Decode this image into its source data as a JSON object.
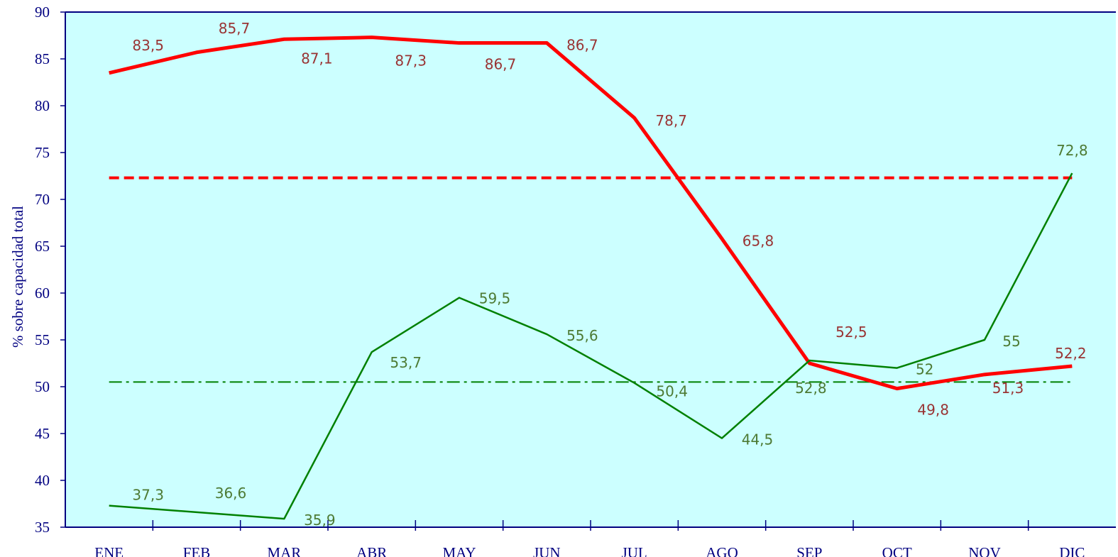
{
  "chart_data": {
    "type": "line",
    "y_axis_label": "% sobre capacidad total",
    "categories": [
      "ENE",
      "FEB",
      "MAR",
      "ABR",
      "MAY",
      "JUN",
      "JUL",
      "AGO",
      "SEP",
      "OCT",
      "NOV",
      "DIC"
    ],
    "series": [
      {
        "color": "#ff0000",
        "width": 5,
        "values": [
          83.5,
          85.7,
          87.1,
          87.3,
          86.7,
          86.7,
          78.7,
          65.8,
          52.5,
          49.8,
          51.3,
          52.2
        ],
        "value_labels": [
          "83,5",
          "85,7",
          "87,1",
          "87,3",
          "86,7",
          "86,7",
          "78,7",
          "65,8",
          "52,5",
          "49,8",
          "51,3",
          "52,2"
        ],
        "label_color": "#993333"
      },
      {
        "color": "#008000",
        "width": 2.5,
        "values": [
          37.3,
          36.6,
          35.9,
          53.7,
          59.5,
          55.6,
          50.4,
          44.5,
          52.8,
          52,
          55,
          72.8
        ],
        "value_labels": [
          "37,3",
          "36,6",
          "35,9",
          "53,7",
          "59,5",
          "55,6",
          "50,4",
          "44,5",
          "52,8",
          "52",
          "55",
          "72,8"
        ],
        "label_color": "#4d7a33"
      }
    ],
    "reference_lines": [
      {
        "value": 72.3,
        "color": "#ff0000",
        "style": "dashed"
      },
      {
        "value": 50.5,
        "color": "#008000",
        "style": "dashdot"
      }
    ],
    "ylim": [
      35,
      90
    ],
    "yticks": [
      35,
      40,
      45,
      50,
      55,
      60,
      65,
      70,
      75,
      80,
      85,
      90
    ],
    "background": "#ccffff",
    "grid": false
  }
}
